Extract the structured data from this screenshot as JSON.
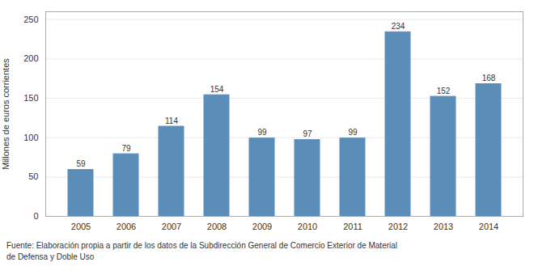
{
  "chart_data": {
    "type": "bar",
    "categories": [
      "2005",
      "2006",
      "2007",
      "2008",
      "2009",
      "2010",
      "2011",
      "2012",
      "2013",
      "2014"
    ],
    "values": [
      59,
      79,
      114,
      154,
      99,
      97,
      99,
      234,
      152,
      168
    ],
    "color": "#5b8db8",
    "ylabel": "Millones de euros corrientes",
    "ylim": [
      0,
      260
    ],
    "yticks": [
      0,
      50,
      100,
      150,
      200,
      250
    ],
    "grid": true,
    "data_labels": true,
    "caption": "Fuente: Elaboración propia a partir de los datos de la Subdirección General de Comercio Exterior de Material\nde Defensa y Doble Uso"
  }
}
